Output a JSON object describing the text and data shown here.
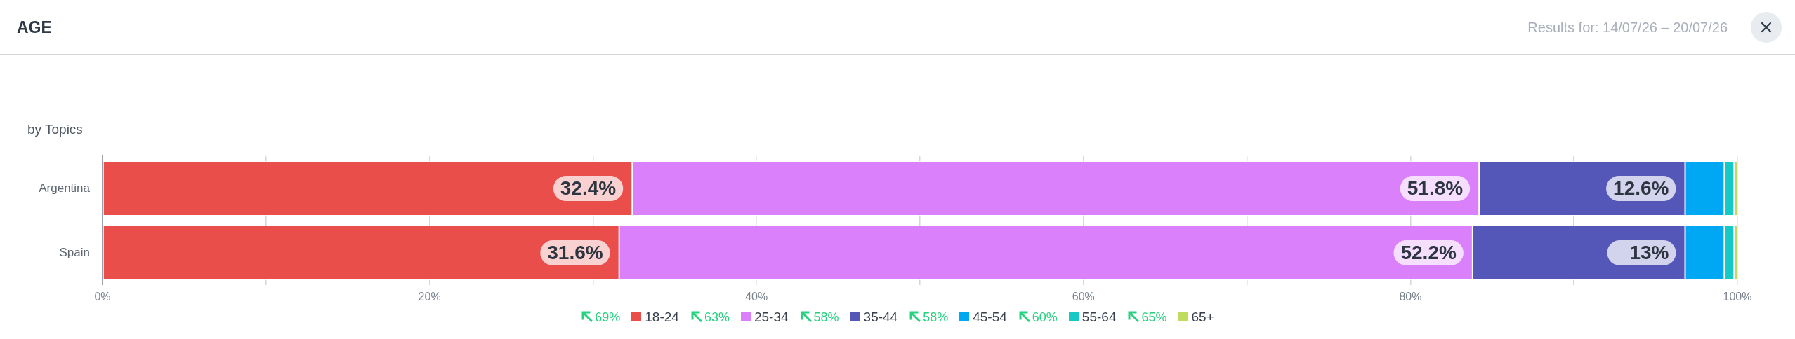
{
  "chart_data": {
    "type": "bar",
    "orientation": "horizontal",
    "stacked": true,
    "title": "AGE",
    "subtitle": "Results for: 14/07/26 – 20/07/26",
    "ylabel": "by Topics",
    "categories": [
      "Argentina",
      "Spain"
    ],
    "series": [
      {
        "name": "18-24",
        "color": "#e94e4b",
        "values": [
          32.4,
          31.6
        ],
        "value_labels": [
          "32.4%",
          "31.6%"
        ]
      },
      {
        "name": "25-34",
        "color": "#d980fa",
        "values": [
          51.8,
          52.2
        ],
        "value_labels": [
          "51.8%",
          "52.2%"
        ]
      },
      {
        "name": "35-44",
        "color": "#5457b8",
        "values": [
          12.6,
          13
        ],
        "value_labels": [
          "12.6%",
          "13%"
        ]
      },
      {
        "name": "45-54",
        "color": "#00a8f3",
        "values": [
          2.4,
          2.4
        ],
        "value_labels": [
          null,
          null
        ]
      },
      {
        "name": "55-64",
        "color": "#16c9c4",
        "values": [
          0.6,
          0.6
        ],
        "value_labels": [
          null,
          null
        ]
      },
      {
        "name": "65+",
        "color": "#bedd5f",
        "values": [
          0.2,
          0.2
        ],
        "value_labels": [
          null,
          null
        ]
      }
    ],
    "xlim": [
      0,
      100
    ],
    "xticks": [
      {
        "value": 0,
        "label": "0%"
      },
      {
        "value": 10,
        "label": null
      },
      {
        "value": 20,
        "label": "20%"
      },
      {
        "value": 30,
        "label": null
      },
      {
        "value": 40,
        "label": "40%"
      },
      {
        "value": 50,
        "label": null
      },
      {
        "value": 60,
        "label": "60%"
      },
      {
        "value": 70,
        "label": null
      },
      {
        "value": 80,
        "label": "80%"
      },
      {
        "value": 90,
        "label": null
      },
      {
        "value": 100,
        "label": "100%"
      }
    ],
    "grid": "x",
    "legend": "bottom",
    "annotations": [
      "69%",
      "63%",
      "58%",
      "58%",
      "60%",
      "65%"
    ]
  }
}
